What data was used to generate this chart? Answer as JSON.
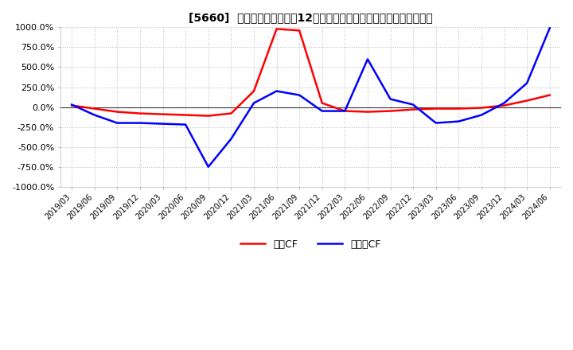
{
  "title": "[5660]  キャッシュフローの12か月移動合計の対前年同期増減率の推移",
  "ylim": [
    -1000,
    1000
  ],
  "yticks": [
    -1000,
    -750,
    -500,
    -250,
    0,
    250,
    500,
    750,
    1000
  ],
  "ytick_labels": [
    "-1000.0%",
    "-750.0%",
    "-500.0%",
    "-250.0%",
    "0.0%",
    "250.0%",
    "500.0%",
    "750.0%",
    "1000.0%"
  ],
  "legend_labels": [
    "営業CF",
    "フリーCF"
  ],
  "op_color": "#ff0000",
  "free_color": "#0000ff",
  "bg_color": "#ffffff",
  "grid_color": "#cccccc",
  "x_labels": [
    "2019/03",
    "2019/06",
    "2019/09",
    "2019/12",
    "2020/03",
    "2020/06",
    "2020/09",
    "2020/12",
    "2021/03",
    "2021/06",
    "2021/09",
    "2021/12",
    "2022/03",
    "2022/06",
    "2022/09",
    "2022/12",
    "2023/03",
    "2023/06",
    "2023/09",
    "2023/12",
    "2024/03",
    "2024/06"
  ],
  "operating_cf": [
    20,
    -20,
    -60,
    -80,
    -90,
    -100,
    -110,
    -80,
    200,
    980,
    960,
    50,
    -50,
    -60,
    -50,
    -30,
    -20,
    -20,
    -10,
    20,
    80,
    150
  ],
  "free_cf": [
    30,
    -100,
    -200,
    -200,
    -210,
    -220,
    -750,
    -400,
    50,
    200,
    150,
    -50,
    -50,
    600,
    100,
    30,
    -200,
    -180,
    -100,
    50,
    300,
    990
  ]
}
